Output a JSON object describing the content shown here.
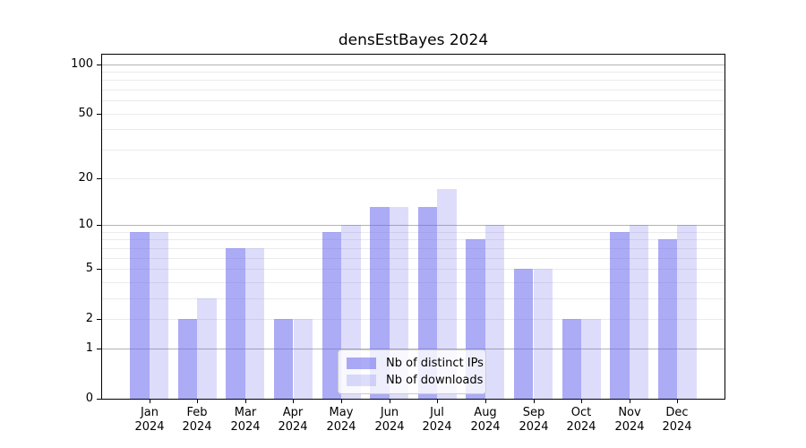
{
  "chart_data": {
    "type": "bar",
    "title": "densEstBayes 2024",
    "categories": [
      "Jan",
      "Feb",
      "Mar",
      "Apr",
      "May",
      "Jun",
      "Jul",
      "Aug",
      "Sep",
      "Oct",
      "Nov",
      "Dec"
    ],
    "category_year": "2024",
    "series": [
      {
        "name": "Nb of distinct IPs",
        "color": "rgba(102,102,238,0.55)",
        "values": [
          9,
          2,
          7,
          2,
          9,
          13,
          13,
          8,
          5,
          2,
          9,
          8
        ]
      },
      {
        "name": "Nb of downloads",
        "color": "rgba(102,102,238,0.22)",
        "values": [
          9,
          3,
          7,
          2,
          10,
          13,
          17,
          10,
          5,
          2,
          10,
          10
        ]
      }
    ],
    "xlabel": "",
    "ylabel": "",
    "yscale": "log10(1+y)",
    "ylim": [
      0,
      114
    ],
    "ytick_values": [
      0,
      1,
      2,
      5,
      10,
      20,
      50,
      100
    ],
    "major_gridlines": [
      1,
      10,
      100
    ],
    "minor_gridlines": [
      2,
      3,
      4,
      5,
      6,
      7,
      8,
      9,
      20,
      30,
      40,
      50,
      60,
      70,
      80,
      90
    ],
    "grid": "on",
    "legend_position": "bottom-center",
    "colors": {
      "bar_base": "#6666ee",
      "grid_minor": "#ebebeb",
      "grid_major": "#b3b3b3",
      "axis": "#000000",
      "legend_border": "#cccccc"
    }
  }
}
